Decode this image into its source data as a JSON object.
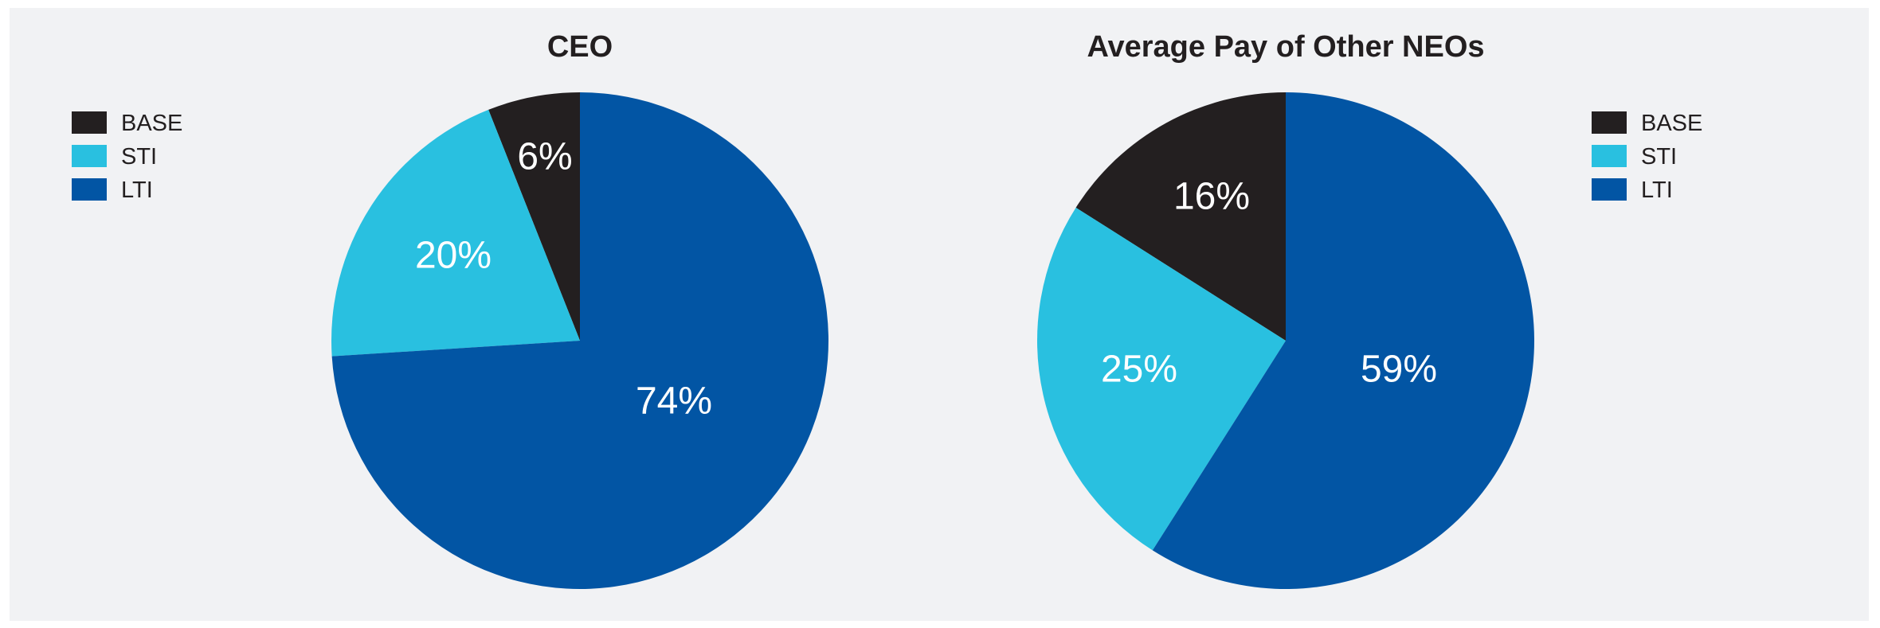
{
  "colors": {
    "BASE": "#231f20",
    "STI": "#29c0e0",
    "LTI": "#0255a4",
    "background": "#f1f2f4",
    "label_text": "#ffffff",
    "title_text": "#231f20"
  },
  "legend_labels": [
    "BASE",
    "STI",
    "LTI"
  ],
  "chart_data": [
    {
      "type": "pie",
      "title": "CEO",
      "slices": [
        {
          "label": "BASE",
          "value": 6,
          "text": "6%"
        },
        {
          "label": "STI",
          "value": 20,
          "text": "20%"
        },
        {
          "label": "LTI",
          "value": 74,
          "text": "74%"
        }
      ],
      "legend_position": "left"
    },
    {
      "type": "pie",
      "title": "Average Pay of Other NEOs",
      "slices": [
        {
          "label": "BASE",
          "value": 16,
          "text": "16%"
        },
        {
          "label": "STI",
          "value": 25,
          "text": "25%"
        },
        {
          "label": "LTI",
          "value": 59,
          "text": "59%"
        }
      ],
      "legend_position": "right"
    }
  ]
}
